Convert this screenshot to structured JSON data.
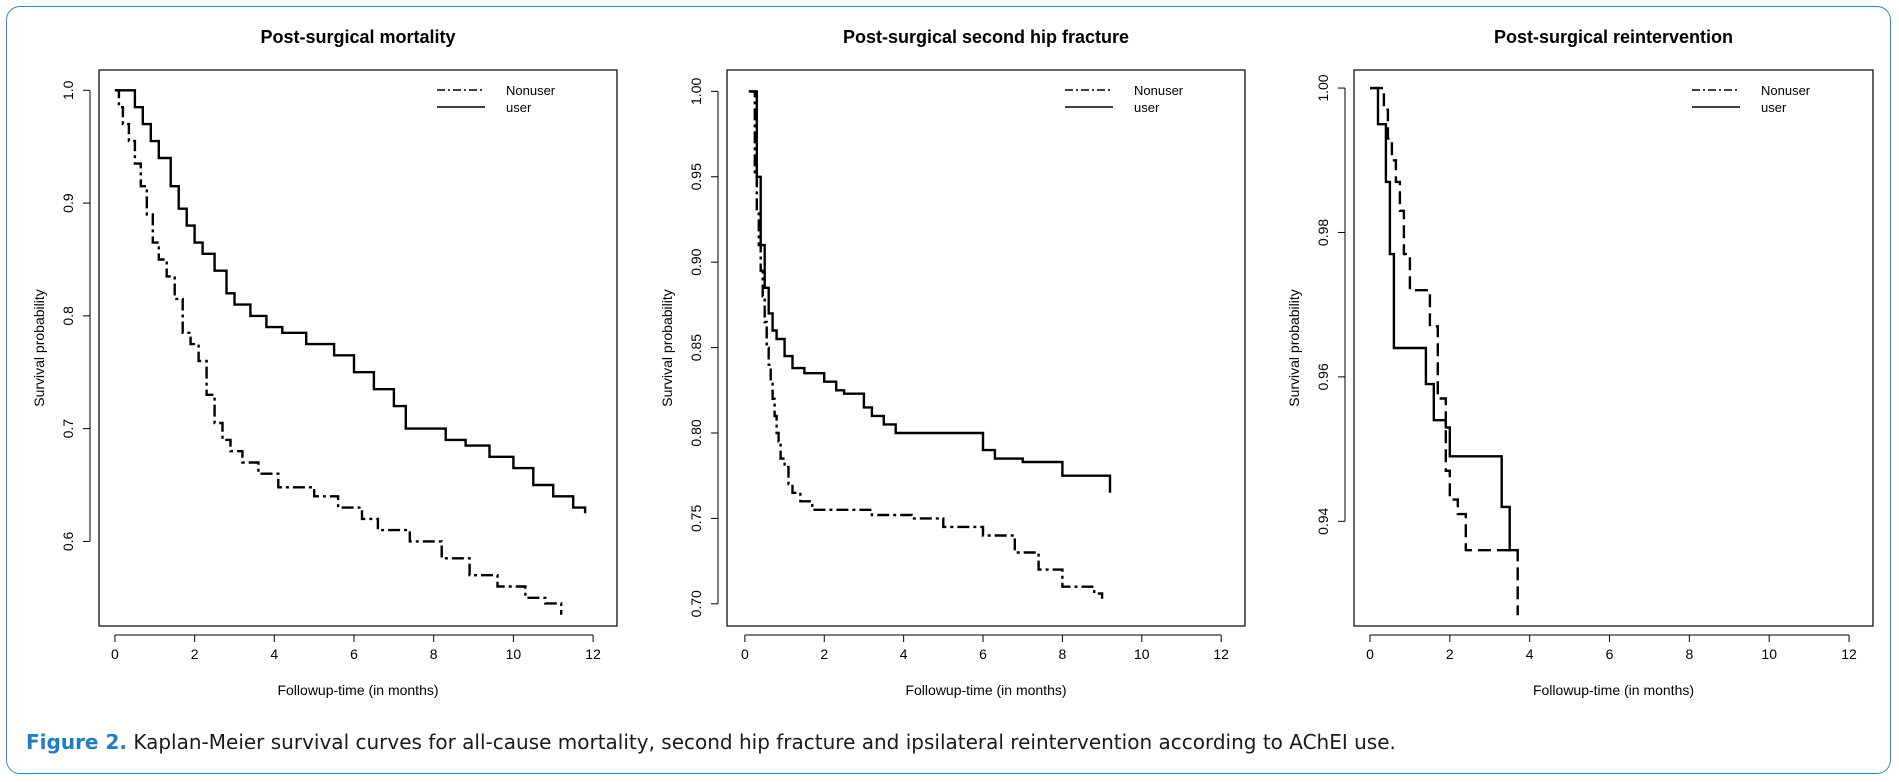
{
  "figure": {
    "caption_label": "Figure 2.",
    "caption_text": " Kaplan-Meier survival curves for all-cause mortality, second hip fracture and ipsilateral reintervention according to AChEI use."
  },
  "colors": {
    "frame": "#2d86c4",
    "caption_label": "#1f7ec2",
    "line": "#000000"
  },
  "chart_data": [
    {
      "type": "line",
      "step": true,
      "title": "Post-surgical mortality",
      "xlabel": "Followup-time (in months)",
      "ylabel": "Survival probability",
      "xlim": [
        -0.4,
        12.6
      ],
      "ylim": [
        0.525,
        1.018
      ],
      "xticks": [
        0,
        2,
        4,
        6,
        8,
        10,
        12
      ],
      "yticks": [
        0.6,
        0.7,
        0.8,
        0.9,
        1.0
      ],
      "ytick_labels": [
        "0.6",
        "0.7",
        "0.8",
        "0.9",
        "1.0"
      ],
      "legend": {
        "position": "top-right",
        "entries": [
          "Nonuser",
          "user"
        ]
      },
      "series": [
        {
          "name": "Nonuser",
          "dash": "dashdot",
          "x": [
            0,
            0.1,
            0.2,
            0.35,
            0.5,
            0.65,
            0.8,
            0.95,
            1.1,
            1.3,
            1.5,
            1.7,
            1.9,
            2.1,
            2.3,
            2.5,
            2.7,
            2.9,
            3.2,
            3.6,
            4.1,
            5,
            5.6,
            6.2,
            6.6,
            7.4,
            8.2,
            8.9,
            9.6,
            10.3,
            10.8,
            11.2
          ],
          "y": [
            1.0,
            0.985,
            0.97,
            0.955,
            0.935,
            0.915,
            0.89,
            0.865,
            0.85,
            0.835,
            0.815,
            0.785,
            0.775,
            0.76,
            0.73,
            0.705,
            0.69,
            0.68,
            0.67,
            0.66,
            0.648,
            0.64,
            0.63,
            0.62,
            0.61,
            0.6,
            0.585,
            0.57,
            0.56,
            0.55,
            0.545,
            0.535
          ]
        },
        {
          "name": "user",
          "dash": "solid",
          "x": [
            0,
            0.5,
            0.7,
            0.9,
            1.1,
            1.4,
            1.6,
            1.8,
            2.0,
            2.2,
            2.5,
            2.8,
            3.0,
            3.4,
            3.8,
            4.2,
            4.8,
            5.5,
            6.0,
            6.5,
            7.0,
            7.3,
            8.3,
            8.8,
            9.4,
            10.0,
            10.5,
            11.0,
            11.5,
            11.8
          ],
          "y": [
            1.0,
            0.985,
            0.97,
            0.955,
            0.94,
            0.915,
            0.895,
            0.88,
            0.865,
            0.855,
            0.84,
            0.82,
            0.81,
            0.8,
            0.79,
            0.785,
            0.775,
            0.765,
            0.75,
            0.735,
            0.72,
            0.7,
            0.69,
            0.685,
            0.675,
            0.665,
            0.65,
            0.64,
            0.63,
            0.625
          ]
        }
      ]
    },
    {
      "type": "line",
      "step": true,
      "title": "Post-surgical second hip fracture",
      "xlabel": "Followup-time (in months)",
      "ylabel": "Survival probability",
      "xlim": [
        -0.45,
        12.6
      ],
      "ylim": [
        0.687,
        1.0125
      ],
      "xticks": [
        0,
        2,
        4,
        6,
        8,
        10,
        12
      ],
      "yticks": [
        0.7,
        0.75,
        0.8,
        0.85,
        0.9,
        0.95,
        1.0
      ],
      "ytick_labels": [
        "0.70",
        "0.75",
        "0.80",
        "0.85",
        "0.90",
        "0.95",
        "1.00"
      ],
      "legend": {
        "position": "top-right",
        "entries": [
          "Nonuser",
          "user"
        ]
      },
      "series": [
        {
          "name": "Nonuser",
          "dash": "dashdot",
          "x": [
            0.1,
            0.25,
            0.3,
            0.35,
            0.4,
            0.45,
            0.5,
            0.55,
            0.6,
            0.65,
            0.7,
            0.75,
            0.8,
            0.85,
            0.9,
            1.0,
            1.1,
            1.2,
            1.4,
            1.7,
            2.3,
            3.2,
            4.2,
            5.0,
            6.0,
            6.8,
            7.4,
            8.0,
            8.8,
            9.0
          ],
          "y": [
            1.0,
            0.95,
            0.93,
            0.91,
            0.895,
            0.88,
            0.865,
            0.85,
            0.84,
            0.83,
            0.82,
            0.81,
            0.8,
            0.795,
            0.785,
            0.78,
            0.77,
            0.765,
            0.76,
            0.755,
            0.755,
            0.752,
            0.75,
            0.745,
            0.74,
            0.73,
            0.72,
            0.71,
            0.706,
            0.703
          ]
        },
        {
          "name": "user",
          "dash": "solid",
          "x": [
            0.1,
            0.3,
            0.4,
            0.5,
            0.6,
            0.7,
            0.8,
            1.0,
            1.2,
            1.5,
            2.0,
            2.3,
            2.5,
            3.0,
            3.2,
            3.5,
            3.8,
            4.5,
            5.5,
            6.0,
            6.3,
            7.0,
            8.0,
            8.5,
            9.2
          ],
          "y": [
            1.0,
            0.95,
            0.91,
            0.885,
            0.87,
            0.86,
            0.855,
            0.845,
            0.838,
            0.835,
            0.83,
            0.825,
            0.823,
            0.815,
            0.81,
            0.805,
            0.8,
            0.8,
            0.8,
            0.79,
            0.785,
            0.783,
            0.775,
            0.775,
            0.765
          ]
        }
      ]
    },
    {
      "type": "line",
      "step": true,
      "title": "Post-surgical reintervention",
      "xlabel": "Followup-time (in months)",
      "ylabel": "Survival probability",
      "xlim": [
        -0.4,
        12.6
      ],
      "ylim": [
        0.9255,
        1.0025
      ],
      "xticks": [
        0,
        2,
        4,
        6,
        8,
        10,
        12
      ],
      "yticks": [
        0.94,
        0.96,
        0.98,
        1.0
      ],
      "ytick_labels": [
        "0.94",
        "0.96",
        "0.98",
        "1.00"
      ],
      "legend": {
        "position": "top-right",
        "entries": [
          "Nonuser",
          "user"
        ]
      },
      "series": [
        {
          "name": "Nonuser",
          "dash": "dashed",
          "x": [
            0,
            0.35,
            0.45,
            0.55,
            0.65,
            0.75,
            0.85,
            1.0,
            1.5,
            1.7,
            1.9,
            2.0,
            2.2,
            2.4,
            3.5,
            3.7
          ],
          "y": [
            1.0,
            0.997,
            0.993,
            0.99,
            0.987,
            0.983,
            0.977,
            0.972,
            0.967,
            0.957,
            0.947,
            0.943,
            0.941,
            0.936,
            0.936,
            0.927
          ]
        },
        {
          "name": "user",
          "dash": "solid",
          "x": [
            0,
            0.2,
            0.4,
            0.5,
            0.6,
            1.4,
            1.6,
            1.9,
            2.0,
            3.3,
            3.5,
            3.7
          ],
          "y": [
            1.0,
            0.995,
            0.987,
            0.977,
            0.964,
            0.959,
            0.954,
            0.953,
            0.949,
            0.942,
            0.936,
            0.936
          ]
        }
      ]
    }
  ]
}
